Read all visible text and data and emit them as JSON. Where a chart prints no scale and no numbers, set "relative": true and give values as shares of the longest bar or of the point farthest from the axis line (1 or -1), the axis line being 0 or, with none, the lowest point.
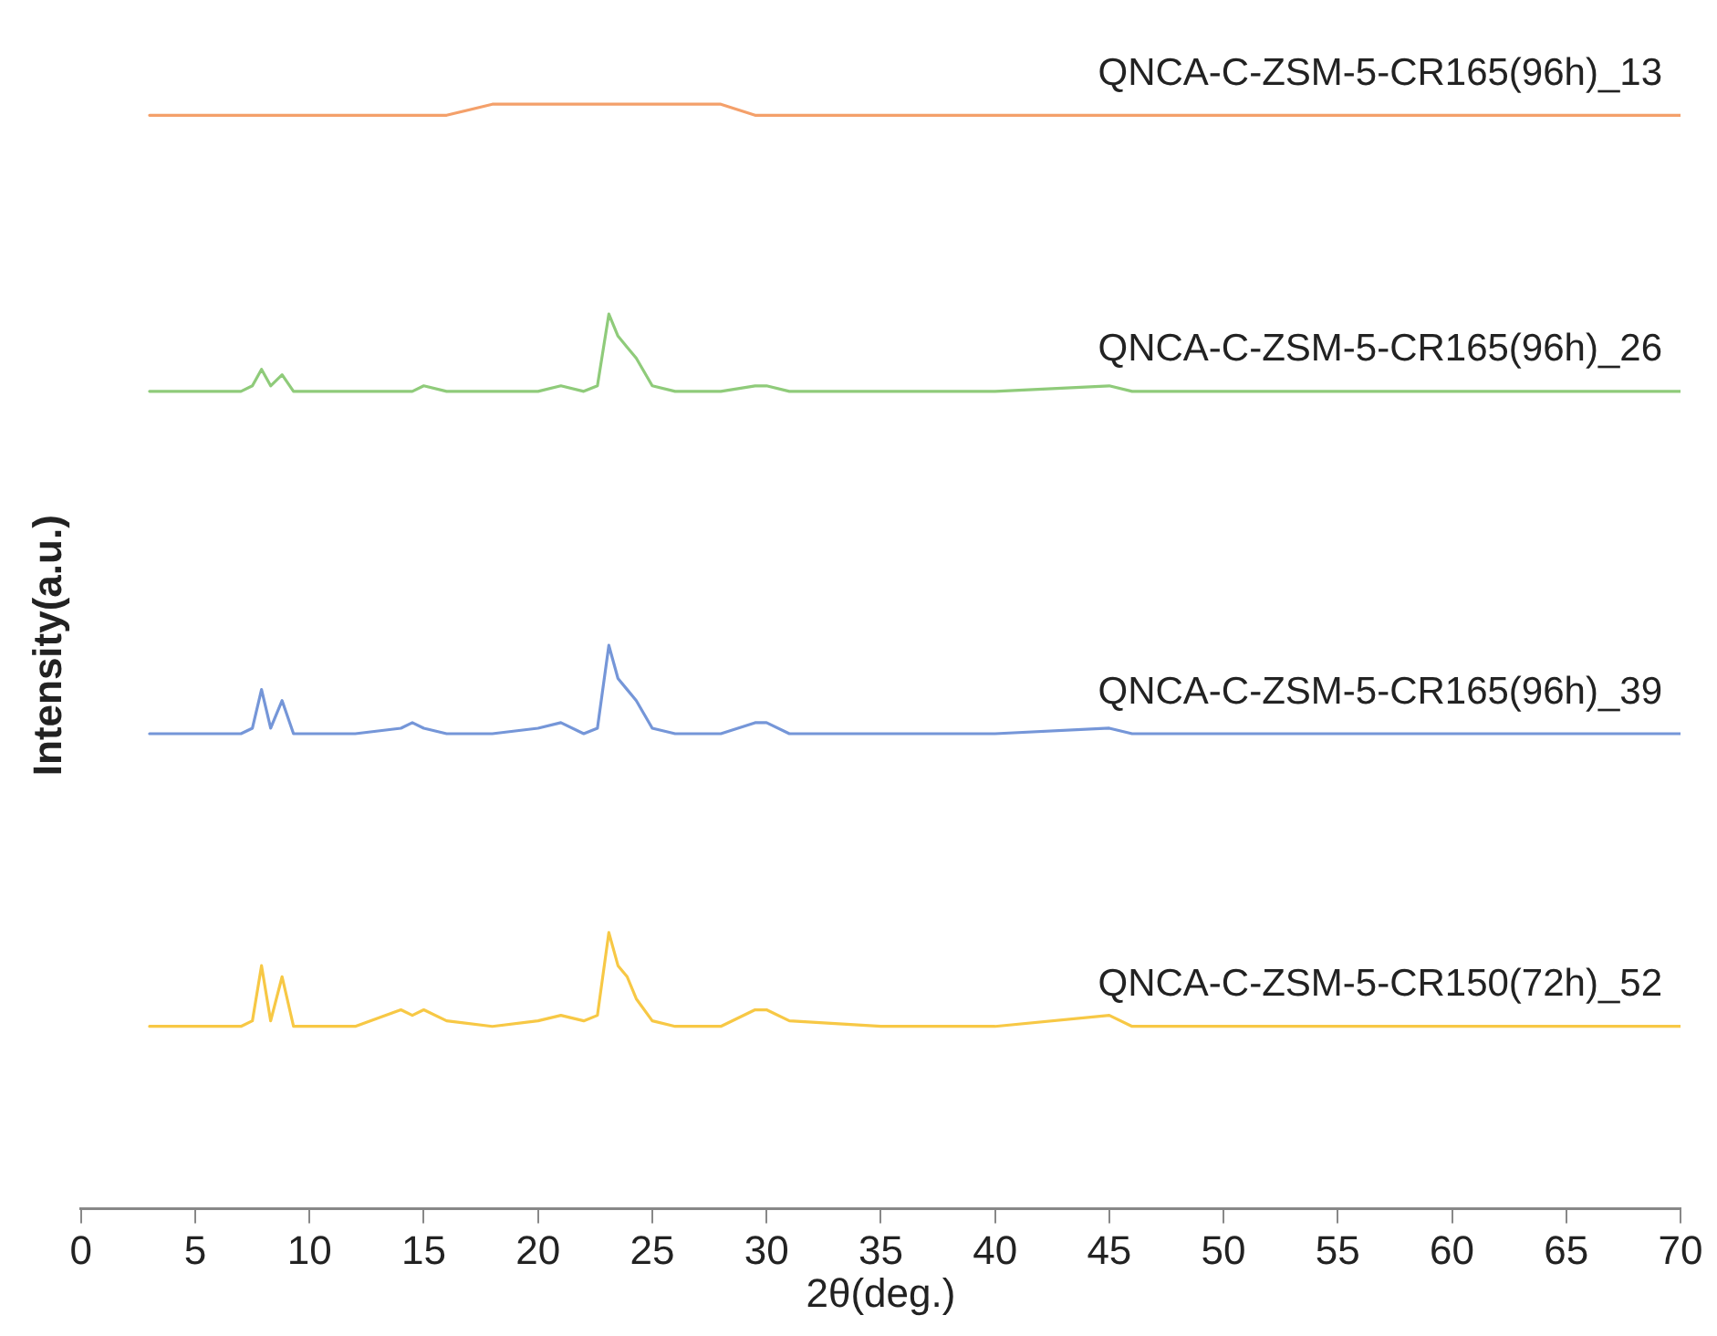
{
  "chart_data": {
    "type": "line",
    "xlabel": "2θ(deg.)",
    "ylabel": "Intensity(a.u.)",
    "relative": true,
    "xlim": [
      0,
      70
    ],
    "xticks": [
      0,
      5,
      10,
      15,
      20,
      25,
      30,
      35,
      40,
      45,
      50,
      55,
      60,
      65,
      70
    ],
    "grid": false,
    "legend": false,
    "marker": "none",
    "line_style": "solid",
    "x": [
      3,
      5,
      7,
      7.5,
      7.9,
      8.3,
      8.8,
      9.3,
      10,
      12,
      14,
      14.5,
      15,
      16,
      18,
      20,
      21,
      22,
      22.6,
      23.1,
      23.5,
      23.9,
      24.3,
      25,
      26,
      28,
      29.5,
      30,
      31,
      35,
      40,
      45,
      46,
      50,
      55,
      60,
      65,
      70
    ],
    "series": [
      {
        "name": "QNCA-C-ZSM-5-CR165(96h)_13",
        "color": "#f4a06a",
        "values": [
          0.99,
          0.99,
          0.99,
          0.99,
          0.99,
          0.99,
          0.99,
          0.99,
          0.99,
          0.99,
          0.99,
          0.99,
          0.99,
          0.99,
          1.0,
          1.0,
          1.0,
          1.0,
          1.0,
          1.0,
          1.0,
          1.0,
          1.0,
          1.0,
          1.0,
          1.0,
          0.99,
          0.99,
          0.99,
          0.99,
          0.99,
          0.99,
          0.99,
          0.99,
          0.99,
          0.99,
          0.99,
          0.99
        ]
      },
      {
        "name": "QNCA-C-ZSM-5-CR165(96h)_26",
        "color": "#8fcb7a",
        "values": [
          0.74,
          0.74,
          0.74,
          0.745,
          0.76,
          0.745,
          0.755,
          0.74,
          0.74,
          0.74,
          0.74,
          0.74,
          0.745,
          0.74,
          0.74,
          0.74,
          0.745,
          0.74,
          0.745,
          0.81,
          0.79,
          0.78,
          0.77,
          0.745,
          0.74,
          0.74,
          0.745,
          0.745,
          0.74,
          0.74,
          0.74,
          0.745,
          0.74,
          0.74,
          0.74,
          0.74,
          0.74,
          0.74
        ]
      },
      {
        "name": "QNCA-C-ZSM-5-CR165(96h)_39",
        "color": "#7596d8",
        "values": [
          0.43,
          0.43,
          0.43,
          0.435,
          0.47,
          0.435,
          0.46,
          0.43,
          0.43,
          0.43,
          0.435,
          0.44,
          0.435,
          0.43,
          0.43,
          0.435,
          0.44,
          0.43,
          0.435,
          0.51,
          0.48,
          0.47,
          0.46,
          0.435,
          0.43,
          0.43,
          0.44,
          0.44,
          0.43,
          0.43,
          0.43,
          0.435,
          0.43,
          0.43,
          0.43,
          0.43,
          0.43,
          0.43
        ]
      },
      {
        "name": "QNCA-C-ZSM-5-CR150(72h)_52",
        "color": "#f7c845",
        "values": [
          0.165,
          0.165,
          0.165,
          0.17,
          0.22,
          0.17,
          0.21,
          0.165,
          0.165,
          0.165,
          0.18,
          0.175,
          0.18,
          0.17,
          0.165,
          0.17,
          0.175,
          0.17,
          0.175,
          0.25,
          0.22,
          0.21,
          0.19,
          0.17,
          0.165,
          0.165,
          0.18,
          0.18,
          0.17,
          0.165,
          0.165,
          0.175,
          0.165,
          0.165,
          0.165,
          0.165,
          0.165,
          0.165
        ]
      }
    ]
  }
}
